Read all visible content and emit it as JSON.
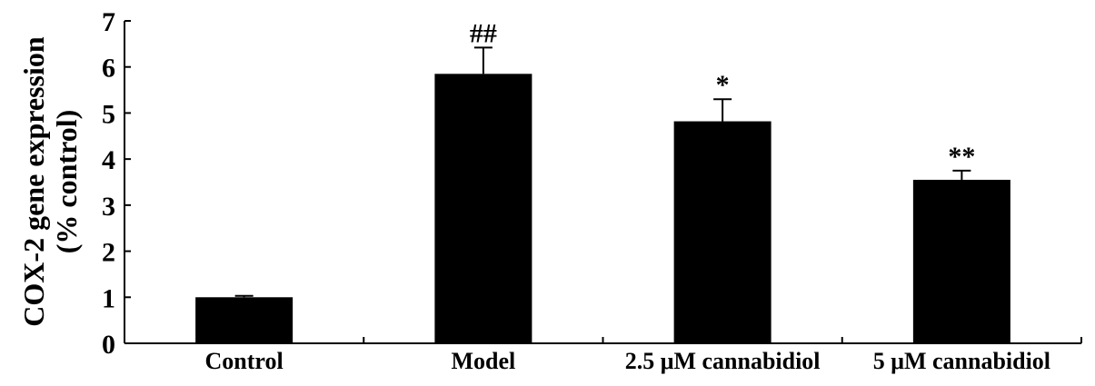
{
  "chart_data": {
    "type": "bar",
    "ylabel": [
      "COX-2 gene expression",
      "(% control)"
    ],
    "ylim": [
      0,
      7
    ],
    "yticks": [
      "0",
      "1",
      "2",
      "3",
      "4",
      "5",
      "6",
      "7"
    ],
    "categories": [
      "Control",
      "Model",
      "2.5  μM cannabidiol",
      "5 μM cannabidiol"
    ],
    "values": [
      1.0,
      5.85,
      4.82,
      3.55
    ],
    "errors": [
      0.03,
      0.57,
      0.48,
      0.2
    ],
    "annotations": [
      "",
      "##",
      "*",
      "**"
    ],
    "bar_color": "#000000",
    "grid": false,
    "legend": "none"
  }
}
